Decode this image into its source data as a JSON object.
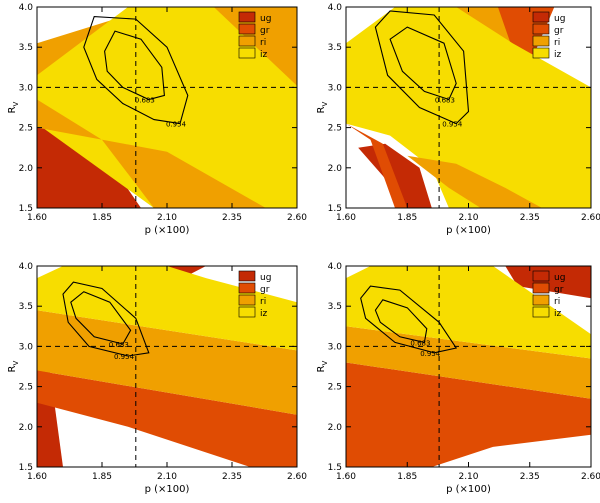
{
  "figure": {
    "panels": [
      "top-left",
      "top-right",
      "bottom-left",
      "bottom-right"
    ]
  },
  "chart_data": [
    {
      "type": "contour",
      "panel": "top-left",
      "xlabel": "p (×100)",
      "ylabel": "R",
      "ylabel_sub": "V",
      "xlim": [
        1.6,
        2.6
      ],
      "ylim": [
        1.5,
        4.0
      ],
      "xticks": [
        "1.60",
        "1.85",
        "2.10",
        "2.35",
        "2.60"
      ],
      "yticks": [
        "1.5",
        "2.0",
        "2.5",
        "3.0",
        "3.5",
        "4.0"
      ],
      "reference_lines": {
        "x": 1.98,
        "y": 3.0
      },
      "legend": [
        "ug",
        "gr",
        "ri",
        "iz"
      ],
      "colors": {
        "ug": "#c42a05",
        "gr": "#e04c03",
        "ri": "#f0a000",
        "iz": "#f7dd00"
      },
      "bands": [
        {
          "name": "ug",
          "points": [
            [
              1.6,
              2.7
            ],
            [
              1.85,
              2.2
            ],
            [
              2.0,
              1.5
            ],
            [
              1.6,
              1.5
            ]
          ]
        },
        {
          "name": "gr",
          "points": [
            [
              2.18,
              4.0
            ],
            [
              2.6,
              4.0
            ],
            [
              2.6,
              3.55
            ],
            [
              2.32,
              3.45
            ]
          ]
        },
        {
          "name": "ri",
          "points": [
            [
              1.6,
              3.55
            ],
            [
              2.05,
              4.0
            ],
            [
              2.6,
              4.0
            ],
            [
              2.6,
              2.75
            ],
            [
              2.0,
              2.9
            ],
            [
              1.6,
              2.95
            ]
          ]
        },
        {
          "name": "iz",
          "points": [
            [
              1.6,
              3.15
            ],
            [
              1.95,
              4.0
            ],
            [
              2.28,
              4.0
            ],
            [
              2.6,
              3.02
            ],
            [
              2.6,
              1.5
            ],
            [
              2.05,
              1.5
            ],
            [
              1.6,
              2.55
            ]
          ]
        },
        {
          "name": "ri",
          "points": [
            [
              1.6,
              2.85
            ],
            [
              1.85,
              2.35
            ],
            [
              2.05,
              1.5
            ],
            [
              2.48,
              1.5
            ],
            [
              2.1,
              2.2
            ],
            [
              1.6,
              2.5
            ]
          ]
        }
      ],
      "contours": [
        {
          "label": "0.683",
          "points": [
            [
              1.86,
              3.45
            ],
            [
              1.9,
              3.7
            ],
            [
              2.0,
              3.6
            ],
            [
              2.08,
              3.25
            ],
            [
              2.09,
              2.9
            ],
            [
              2.03,
              2.85
            ],
            [
              1.93,
              3.0
            ],
            [
              1.87,
              3.2
            ]
          ]
        },
        {
          "label": "0.954",
          "points": [
            [
              1.78,
              3.5
            ],
            [
              1.82,
              3.88
            ],
            [
              1.98,
              3.85
            ],
            [
              2.1,
              3.5
            ],
            [
              2.18,
              2.9
            ],
            [
              2.15,
              2.55
            ],
            [
              2.05,
              2.6
            ],
            [
              1.93,
              2.8
            ],
            [
              1.83,
              3.1
            ]
          ]
        }
      ]
    },
    {
      "type": "contour",
      "panel": "top-right",
      "xlabel": "p (×100)",
      "ylabel": "R",
      "ylabel_sub": "V",
      "xlim": [
        1.6,
        2.6
      ],
      "ylim": [
        1.5,
        4.0
      ],
      "xticks": [
        "1.60",
        "1.85",
        "2.10",
        "2.35",
        "2.60"
      ],
      "yticks": [
        "1.5",
        "2.0",
        "2.5",
        "3.0",
        "3.5",
        "4.0"
      ],
      "reference_lines": {
        "x": 1.98,
        "y": 3.0
      },
      "legend": [
        "ug",
        "gr",
        "ri",
        "iz"
      ],
      "colors": {
        "ug": "#c42a05",
        "gr": "#e04c03",
        "ri": "#f0a000",
        "iz": "#f7dd00"
      },
      "bands": [
        {
          "name": "ug",
          "points": [
            [
              1.65,
              2.25
            ],
            [
              1.75,
              1.9
            ],
            [
              1.85,
              1.5
            ],
            [
              1.95,
              1.5
            ],
            [
              1.9,
              2.0
            ],
            [
              1.76,
              2.3
            ]
          ]
        },
        {
          "name": "gr",
          "points": [
            [
              1.6,
              2.55
            ],
            [
              1.7,
              2.35
            ],
            [
              1.8,
              1.5
            ],
            [
              1.85,
              1.5
            ],
            [
              1.75,
              2.3
            ],
            [
              1.63,
              2.5
            ]
          ]
        },
        {
          "name": "gr",
          "points": [
            [
              2.2,
              4.0
            ],
            [
              2.45,
              4.0
            ],
            [
              2.38,
              3.5
            ],
            [
              2.32,
              3.2
            ]
          ]
        },
        {
          "name": "ri",
          "points": [
            [
              1.6,
              3.3
            ],
            [
              2.0,
              4.0
            ],
            [
              2.22,
              4.0
            ],
            [
              2.3,
              3.3
            ],
            [
              2.6,
              2.95
            ],
            [
              2.6,
              2.5
            ],
            [
              2.1,
              2.55
            ],
            [
              1.6,
              2.6
            ]
          ]
        },
        {
          "name": "iz",
          "points": [
            [
              1.6,
              3.55
            ],
            [
              1.8,
              4.0
            ],
            [
              2.05,
              4.0
            ],
            [
              2.28,
              3.55
            ],
            [
              2.6,
              3.0
            ],
            [
              2.6,
              1.5
            ],
            [
              2.02,
              1.5
            ],
            [
              1.95,
              2.0
            ],
            [
              1.78,
              2.4
            ],
            [
              1.6,
              2.55
            ]
          ]
        },
        {
          "name": "ri",
          "points": [
            [
              1.85,
              2.15
            ],
            [
              2.02,
              1.75
            ],
            [
              2.15,
              1.5
            ],
            [
              2.4,
              1.5
            ],
            [
              2.25,
              1.75
            ],
            [
              2.05,
              2.05
            ]
          ]
        }
      ],
      "contours": [
        {
          "label": "0.683",
          "points": [
            [
              1.78,
              3.6
            ],
            [
              1.85,
              3.75
            ],
            [
              2.0,
              3.55
            ],
            [
              2.05,
              3.05
            ],
            [
              2.02,
              2.85
            ],
            [
              1.92,
              2.95
            ],
            [
              1.83,
              3.2
            ]
          ]
        },
        {
          "label": "0.954",
          "points": [
            [
              1.72,
              3.75
            ],
            [
              1.78,
              3.95
            ],
            [
              1.96,
              3.9
            ],
            [
              2.08,
              3.45
            ],
            [
              2.1,
              2.7
            ],
            [
              2.05,
              2.55
            ],
            [
              1.9,
              2.75
            ],
            [
              1.77,
              3.15
            ]
          ]
        }
      ]
    },
    {
      "type": "contour",
      "panel": "bottom-left",
      "xlabel": "p (×100)",
      "ylabel": "R",
      "ylabel_sub": "V",
      "xlim": [
        1.6,
        2.6
      ],
      "ylim": [
        1.5,
        4.0
      ],
      "xticks": [
        "1.60",
        "1.85",
        "2.10",
        "2.35",
        "2.60"
      ],
      "yticks": [
        "1.5",
        "2.0",
        "2.5",
        "3.0",
        "3.5",
        "4.0"
      ],
      "reference_lines": {
        "x": 1.98,
        "y": 3.0
      },
      "legend": [
        "ug",
        "gr",
        "ri",
        "iz"
      ],
      "colors": {
        "ug": "#c42a05",
        "gr": "#e04c03",
        "ri": "#f0a000",
        "iz": "#f7dd00"
      },
      "bands": [
        {
          "name": "ug",
          "points": [
            [
              1.6,
              2.75
            ],
            [
              1.65,
              2.7
            ],
            [
              1.7,
              1.5
            ],
            [
              1.6,
              1.5
            ]
          ]
        },
        {
          "name": "ug",
          "points": [
            [
              2.05,
              4.0
            ],
            [
              2.25,
              4.0
            ],
            [
              2.1,
              3.75
            ]
          ]
        },
        {
          "name": "gr",
          "points": [
            [
              1.6,
              2.7
            ],
            [
              2.6,
              2.15
            ],
            [
              2.6,
              1.5
            ],
            [
              2.42,
              1.5
            ],
            [
              1.95,
              2.0
            ],
            [
              1.6,
              2.3
            ]
          ]
        },
        {
          "name": "ri",
          "points": [
            [
              1.6,
              3.45
            ],
            [
              2.6,
              2.95
            ],
            [
              2.6,
              2.15
            ],
            [
              1.6,
              2.7
            ]
          ]
        },
        {
          "name": "iz",
          "points": [
            [
              1.6,
              3.85
            ],
            [
              1.7,
              4.0
            ],
            [
              2.1,
              4.0
            ],
            [
              2.25,
              3.85
            ],
            [
              2.6,
              3.55
            ],
            [
              2.6,
              2.95
            ],
            [
              1.6,
              3.45
            ]
          ]
        }
      ],
      "contours": [
        {
          "label": "0.683",
          "points": [
            [
              1.73,
              3.55
            ],
            [
              1.78,
              3.68
            ],
            [
              1.88,
              3.55
            ],
            [
              1.96,
              3.2
            ],
            [
              1.93,
              3.03
            ],
            [
              1.82,
              3.12
            ],
            [
              1.75,
              3.35
            ]
          ]
        },
        {
          "label": "0.954",
          "points": [
            [
              1.7,
              3.65
            ],
            [
              1.74,
              3.8
            ],
            [
              1.85,
              3.72
            ],
            [
              1.98,
              3.35
            ],
            [
              2.03,
              2.92
            ],
            [
              1.95,
              2.88
            ],
            [
              1.8,
              3.0
            ],
            [
              1.72,
              3.3
            ]
          ]
        }
      ]
    },
    {
      "type": "contour",
      "panel": "bottom-right",
      "xlabel": "p (×100)",
      "ylabel": "R",
      "ylabel_sub": "V",
      "xlim": [
        1.6,
        2.6
      ],
      "ylim": [
        1.5,
        4.0
      ],
      "xticks": [
        "1.60",
        "1.85",
        "2.10",
        "2.35",
        "2.60"
      ],
      "yticks": [
        "1.5",
        "2.0",
        "2.5",
        "3.0",
        "3.5",
        "4.0"
      ],
      "reference_lines": {
        "x": 1.98,
        "y": 3.0
      },
      "legend": [
        "ug",
        "gr",
        "ri",
        "iz"
      ],
      "colors": {
        "ug": "#c42a05",
        "gr": "#e04c03",
        "ri": "#f0a000",
        "iz": "#f7dd00"
      },
      "bands": [
        {
          "name": "ug",
          "points": [
            [
              1.65,
              2.4
            ],
            [
              1.7,
              1.5
            ],
            [
              1.8,
              1.5
            ],
            [
              1.72,
              2.35
            ]
          ]
        },
        {
          "name": "ug",
          "points": [
            [
              2.25,
              4.0
            ],
            [
              2.6,
              4.0
            ],
            [
              2.6,
              3.6
            ],
            [
              2.3,
              3.75
            ]
          ]
        },
        {
          "name": "gr",
          "points": [
            [
              1.6,
              2.8
            ],
            [
              2.6,
              2.35
            ],
            [
              2.6,
              1.9
            ],
            [
              2.2,
              1.75
            ],
            [
              1.95,
              1.5
            ],
            [
              1.6,
              1.5
            ]
          ]
        },
        {
          "name": "ri",
          "points": [
            [
              1.6,
              3.25
            ],
            [
              2.6,
              2.85
            ],
            [
              2.6,
              2.35
            ],
            [
              1.6,
              2.8
            ]
          ]
        },
        {
          "name": "iz",
          "points": [
            [
              1.6,
              3.85
            ],
            [
              1.7,
              4.0
            ],
            [
              2.2,
              4.0
            ],
            [
              2.6,
              3.15
            ],
            [
              2.6,
              2.85
            ],
            [
              1.6,
              3.25
            ]
          ]
        }
      ],
      "contours": [
        {
          "label": "0.683",
          "points": [
            [
              1.72,
              3.45
            ],
            [
              1.75,
              3.58
            ],
            [
              1.85,
              3.48
            ],
            [
              1.93,
              3.22
            ],
            [
              1.92,
              3.05
            ],
            [
              1.82,
              3.12
            ],
            [
              1.74,
              3.3
            ]
          ]
        },
        {
          "label": "0.954",
          "points": [
            [
              1.66,
              3.6
            ],
            [
              1.7,
              3.75
            ],
            [
              1.82,
              3.7
            ],
            [
              1.98,
              3.3
            ],
            [
              2.05,
              2.98
            ],
            [
              1.96,
              2.92
            ],
            [
              1.8,
              3.05
            ],
            [
              1.68,
              3.35
            ]
          ]
        }
      ]
    }
  ]
}
